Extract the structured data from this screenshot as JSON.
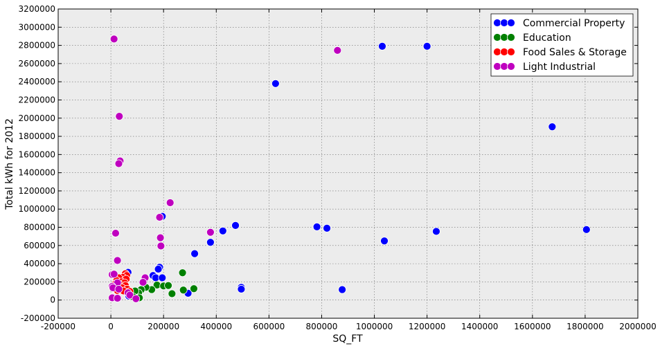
{
  "chart_data": {
    "type": "scatter",
    "title": "",
    "xlabel": "SQ_FT",
    "ylabel": "Total kWh for 2012",
    "xlim": [
      -200000,
      2000000
    ],
    "ylim": [
      -200000,
      3200000
    ],
    "xticks": [
      "-200000",
      "0",
      "200000",
      "400000",
      "600000",
      "800000",
      "1000000",
      "1200000",
      "1400000",
      "1600000",
      "1800000",
      "2000000"
    ],
    "yticks": [
      "-200000",
      "0",
      "200000",
      "400000",
      "600000",
      "800000",
      "1000000",
      "1200000",
      "1400000",
      "1600000",
      "1800000",
      "2000000",
      "2200000",
      "2400000",
      "2600000",
      "2800000",
      "3000000",
      "3200000"
    ],
    "grid": true,
    "legend_position": "top-right",
    "series": [
      {
        "name": "Commercial Property",
        "color": "#0000ff",
        "points": [
          [
            1030000,
            2790000
          ],
          [
            1200000,
            2790000
          ],
          [
            625000,
            2380000
          ],
          [
            1675000,
            1905000
          ],
          [
            473000,
            820000
          ],
          [
            782000,
            805000
          ],
          [
            820000,
            790000
          ],
          [
            1805000,
            775000
          ],
          [
            425000,
            760000
          ],
          [
            1235000,
            755000
          ],
          [
            378000,
            635000
          ],
          [
            1038000,
            650000
          ],
          [
            318000,
            510000
          ],
          [
            185000,
            360000
          ],
          [
            180000,
            340000
          ],
          [
            65000,
            305000
          ],
          [
            160000,
            270000
          ],
          [
            170000,
            245000
          ],
          [
            195000,
            245000
          ],
          [
            495000,
            140000
          ],
          [
            495000,
            120000
          ],
          [
            878000,
            115000
          ],
          [
            293000,
            75000
          ],
          [
            195000,
            920000
          ],
          [
            68000,
            45000
          ],
          [
            100000,
            25000
          ]
        ]
      },
      {
        "name": "Education",
        "color": "#008000",
        "points": [
          [
            272000,
            300000
          ],
          [
            175000,
            165000
          ],
          [
            200000,
            155000
          ],
          [
            218000,
            160000
          ],
          [
            315000,
            125000
          ],
          [
            275000,
            110000
          ],
          [
            155000,
            115000
          ],
          [
            133000,
            140000
          ],
          [
            115000,
            115000
          ],
          [
            105000,
            80000
          ],
          [
            92000,
            100000
          ],
          [
            232000,
            70000
          ],
          [
            108000,
            25000
          ],
          [
            85000,
            35000
          ]
        ]
      },
      {
        "name": "Food Sales & Storage",
        "color": "#ff0000",
        "points": [
          [
            55000,
            290000
          ],
          [
            60000,
            270000
          ],
          [
            45000,
            250000
          ],
          [
            30000,
            245000
          ],
          [
            58000,
            230000
          ],
          [
            22000,
            215000
          ],
          [
            40000,
            200000
          ],
          [
            52000,
            190000
          ],
          [
            18000,
            180000
          ],
          [
            35000,
            165000
          ],
          [
            55000,
            160000
          ],
          [
            28000,
            145000
          ],
          [
            42000,
            135000
          ],
          [
            15000,
            125000
          ],
          [
            62000,
            120000
          ],
          [
            25000,
            105000
          ],
          [
            48000,
            100000
          ],
          [
            72000,
            95000
          ]
        ]
      },
      {
        "name": "Light Industrial",
        "color": "#bf00bf",
        "points": [
          [
            12000,
            2870000
          ],
          [
            860000,
            2745000
          ],
          [
            32000,
            2020000
          ],
          [
            35000,
            1530000
          ],
          [
            30000,
            1500000
          ],
          [
            225000,
            1070000
          ],
          [
            185000,
            910000
          ],
          [
            378000,
            745000
          ],
          [
            18000,
            735000
          ],
          [
            188000,
            685000
          ],
          [
            190000,
            595000
          ],
          [
            25000,
            435000
          ],
          [
            5000,
            280000
          ],
          [
            12000,
            285000
          ],
          [
            130000,
            245000
          ],
          [
            122000,
            195000
          ],
          [
            25000,
            190000
          ],
          [
            5000,
            150000
          ],
          [
            8000,
            135000
          ],
          [
            30000,
            120000
          ],
          [
            65000,
            80000
          ],
          [
            72000,
            55000
          ],
          [
            5000,
            25000
          ],
          [
            25000,
            20000
          ],
          [
            95000,
            15000
          ]
        ]
      }
    ]
  }
}
